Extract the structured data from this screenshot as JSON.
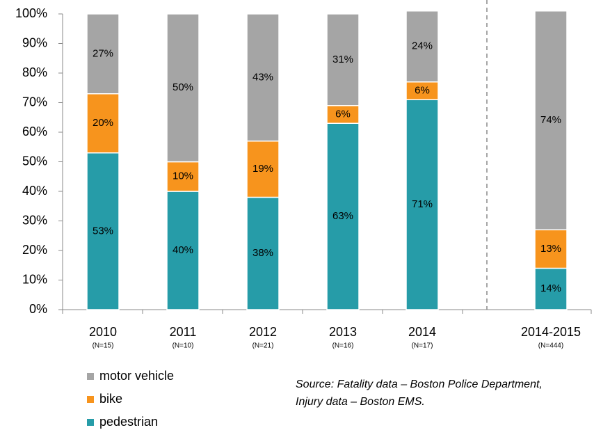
{
  "chart_data": {
    "type": "stacked_bar",
    "categories": [
      "2010",
      "2011",
      "2012",
      "2013",
      "2014",
      "2014-2015"
    ],
    "category_notes": [
      "(N=15)",
      "(N=10)",
      "(N=21)",
      "(N=16)",
      "(N=17)",
      "(N=444)"
    ],
    "series": [
      {
        "name": "pedestrian",
        "color": "#269ca8",
        "values": [
          53,
          40,
          38,
          63,
          71,
          14
        ],
        "value_labels": [
          "53%",
          "40%",
          "38%",
          "63%",
          "71%",
          "14%"
        ]
      },
      {
        "name": "bike",
        "color": "#f7941d",
        "values": [
          20,
          10,
          19,
          6,
          6,
          13
        ],
        "value_labels": [
          "20%",
          "10%",
          "19%",
          "6%",
          "6%",
          "13%"
        ]
      },
      {
        "name": "motor vehicle",
        "color": "#a5a5a5",
        "values": [
          27,
          50,
          43,
          31,
          24,
          74
        ],
        "value_labels": [
          "27%",
          "50%",
          "43%",
          "31%",
          "24%",
          "74%"
        ]
      }
    ],
    "ylim": [
      0,
      100
    ],
    "yticks": [
      {
        "value": 0,
        "label": "0%"
      },
      {
        "value": 10,
        "label": "10%"
      },
      {
        "value": 20,
        "label": "20%"
      },
      {
        "value": 30,
        "label": "30%"
      },
      {
        "value": 40,
        "label": "40%"
      },
      {
        "value": 50,
        "label": "50%"
      },
      {
        "value": 60,
        "label": "60%"
      },
      {
        "value": 70,
        "label": "70%"
      },
      {
        "value": 80,
        "label": "80%"
      },
      {
        "value": 90,
        "label": "90%"
      },
      {
        "value": 100,
        "label": "100%"
      }
    ],
    "annotations": [
      "Source: Fatality data – Boston Police Department,",
      "Injury data – Boston EMS."
    ]
  }
}
